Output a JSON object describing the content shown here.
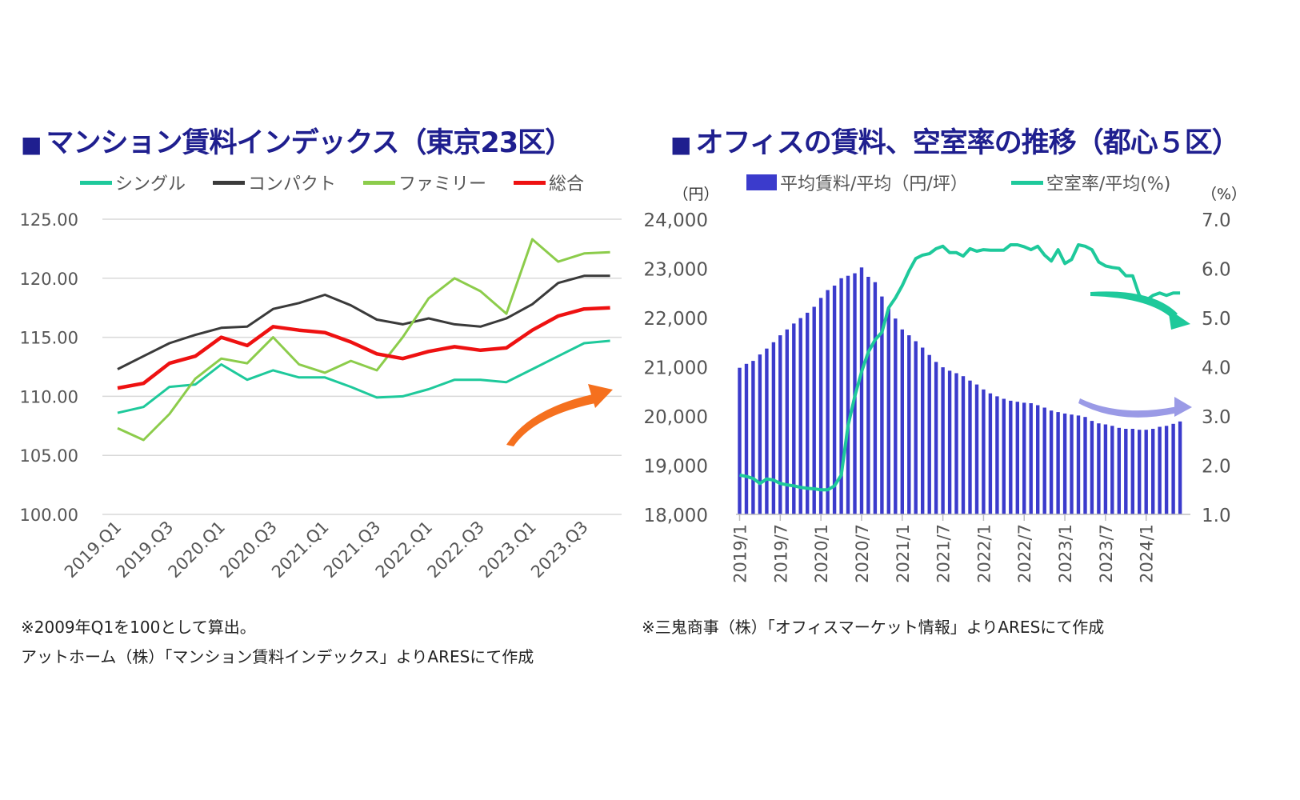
{
  "left": {
    "title": "マンション賃料インデックス（東京23区）",
    "title_marker": "■",
    "colors": {
      "single": "#1ec99b",
      "compact": "#3a3a3a",
      "family": "#8ccc4b",
      "total": "#ee1111",
      "arrow": "#f5701e"
    },
    "notes": [
      "※2009年Q1を100として算出。",
      "アットホーム（株）「マンション賃料インデックス」よりARESにて作成"
    ]
  },
  "right": {
    "title": "オフィスの賃料、空室率の推移（都心５区）",
    "title_marker": "■",
    "y_left_unit": "（円）",
    "y_right_unit": "（%）",
    "colors": {
      "rent": "#3b3bcc",
      "vacancy": "#1ec99b",
      "arrow_vacancy": "#1ec99b",
      "arrow_rent": "#9a9ae6"
    },
    "notes": [
      "※三鬼商事（株）「オフィスマーケット情報」よりARESにて作成"
    ]
  },
  "chart_data": [
    {
      "type": "line",
      "title": "マンション賃料インデックス（東京23区）",
      "categories": [
        "2019.Q1",
        "2019.Q2",
        "2019.Q3",
        "2019.Q4",
        "2020.Q1",
        "2020.Q2",
        "2020.Q3",
        "2020.Q4",
        "2021.Q1",
        "2021.Q2",
        "2021.Q3",
        "2021.Q4",
        "2022.Q1",
        "2022.Q2",
        "2022.Q3",
        "2022.Q4",
        "2023.Q1",
        "2023.Q2",
        "2023.Q3",
        "2023.Q4"
      ],
      "tick_labels": [
        "2019.Q1",
        "2019.Q3",
        "2020.Q1",
        "2020.Q3",
        "2021.Q1",
        "2021.Q3",
        "2022.Q1",
        "2022.Q3",
        "2023.Q1",
        "2023.Q3"
      ],
      "series": [
        {
          "name": "シングル",
          "values": [
            108.6,
            109.1,
            110.8,
            111.0,
            112.7,
            111.4,
            112.2,
            111.6,
            111.6,
            110.8,
            109.9,
            110.0,
            110.6,
            111.4,
            111.4,
            111.2,
            112.3,
            113.4,
            114.5,
            114.7
          ]
        },
        {
          "name": "コンパクト",
          "values": [
            112.3,
            113.4,
            114.5,
            115.2,
            115.8,
            115.9,
            117.4,
            117.9,
            118.6,
            117.7,
            116.5,
            116.1,
            116.6,
            116.1,
            115.9,
            116.6,
            117.8,
            119.6,
            120.2,
            120.2
          ]
        },
        {
          "name": "ファミリー",
          "values": [
            107.3,
            106.3,
            108.5,
            111.5,
            113.2,
            112.8,
            115.0,
            112.7,
            112.0,
            113.0,
            112.2,
            115.0,
            118.3,
            120.0,
            118.9,
            117.0,
            123.3,
            121.4,
            122.1,
            122.2
          ]
        },
        {
          "name": "総合",
          "values": [
            110.7,
            111.1,
            112.8,
            113.4,
            115.0,
            114.3,
            115.9,
            115.6,
            115.4,
            114.6,
            113.6,
            113.2,
            113.8,
            114.2,
            113.9,
            114.1,
            115.6,
            116.8,
            117.4,
            117.5
          ]
        }
      ],
      "ylim": [
        100,
        125
      ],
      "yticks": [
        "100.00",
        "105.00",
        "110.00",
        "115.00",
        "120.00",
        "125.00"
      ],
      "grid": true,
      "legend_position": "top"
    },
    {
      "type": "bar+line",
      "title": "オフィスの賃料、空室率の推移（都心５区）",
      "months": [
        "2019/1",
        "2019/2",
        "2019/3",
        "2019/4",
        "2019/5",
        "2019/6",
        "2019/7",
        "2019/8",
        "2019/9",
        "2019/10",
        "2019/11",
        "2019/12",
        "2020/1",
        "2020/2",
        "2020/3",
        "2020/4",
        "2020/5",
        "2020/6",
        "2020/7",
        "2020/8",
        "2020/9",
        "2020/10",
        "2020/11",
        "2020/12",
        "2021/1",
        "2021/2",
        "2021/3",
        "2021/4",
        "2021/5",
        "2021/6",
        "2021/7",
        "2021/8",
        "2021/9",
        "2021/10",
        "2021/11",
        "2021/12",
        "2022/1",
        "2022/2",
        "2022/3",
        "2022/4",
        "2022/5",
        "2022/6",
        "2022/7",
        "2022/8",
        "2022/9",
        "2022/10",
        "2022/11",
        "2022/12",
        "2023/1",
        "2023/2",
        "2023/3",
        "2023/4",
        "2023/5",
        "2023/6",
        "2023/7",
        "2023/8",
        "2023/9",
        "2023/10",
        "2023/11",
        "2023/12",
        "2024/1",
        "2024/2",
        "2024/3",
        "2024/4",
        "2024/5",
        "2024/6"
      ],
      "tick_labels": [
        "2019/1",
        "2019/7",
        "2020/1",
        "2020/7",
        "2021/1",
        "2021/7",
        "2022/1",
        "2022/7",
        "2023/1",
        "2023/7",
        "2024/1"
      ],
      "series": [
        {
          "name": "平均賃料/平均（円/坪）",
          "type": "bar",
          "axis": "left",
          "values": [
            20980,
            21060,
            21120,
            21250,
            21370,
            21500,
            21640,
            21760,
            21880,
            21990,
            22100,
            22220,
            22400,
            22560,
            22650,
            22800,
            22850,
            22900,
            23020,
            22830,
            22720,
            22430,
            22190,
            21980,
            21760,
            21640,
            21520,
            21390,
            21240,
            21100,
            20990,
            20920,
            20870,
            20810,
            20720,
            20640,
            20540,
            20460,
            20400,
            20350,
            20310,
            20290,
            20270,
            20260,
            20220,
            20170,
            20110,
            20080,
            20050,
            20030,
            20010,
            19980,
            19900,
            19850,
            19830,
            19800,
            19760,
            19740,
            19740,
            19720,
            19720,
            19740,
            19780,
            19800,
            19840,
            19890
          ]
        },
        {
          "name": "空室率/平均(%)",
          "type": "line",
          "axis": "right",
          "values": [
            1.8,
            1.77,
            1.73,
            1.63,
            1.72,
            1.7,
            1.63,
            1.6,
            1.58,
            1.55,
            1.53,
            1.52,
            1.5,
            1.5,
            1.58,
            1.8,
            2.8,
            3.4,
            3.9,
            4.3,
            4.55,
            4.7,
            5.2,
            5.4,
            5.65,
            5.95,
            6.2,
            6.27,
            6.3,
            6.4,
            6.45,
            6.32,
            6.32,
            6.25,
            6.4,
            6.35,
            6.38,
            6.37,
            6.37,
            6.37,
            6.48,
            6.48,
            6.44,
            6.38,
            6.45,
            6.27,
            6.15,
            6.38,
            6.1,
            6.18,
            6.48,
            6.45,
            6.38,
            6.13,
            6.05,
            6.02,
            6.0,
            5.85,
            5.85,
            5.45,
            5.35,
            5.45,
            5.5,
            5.45,
            5.5,
            5.5
          ]
        }
      ],
      "ylim_left": [
        18000,
        24000
      ],
      "ylim_right": [
        1.0,
        7.0
      ],
      "yticks_left": [
        "18,000",
        "19,000",
        "20,000",
        "21,000",
        "22,000",
        "23,000",
        "24,000"
      ],
      "yticks_right": [
        "1.0",
        "2.0",
        "3.0",
        "4.0",
        "5.0",
        "6.0",
        "7.0"
      ],
      "grid": false,
      "legend_position": "top"
    }
  ]
}
